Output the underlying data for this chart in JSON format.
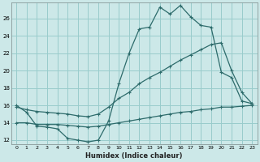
{
  "xlabel": "Humidex (Indice chaleur)",
  "bg_color": "#cce8e8",
  "grid_color": "#99cccc",
  "line_color": "#2d6b6b",
  "xlim": [
    -0.5,
    23.5
  ],
  "ylim": [
    11.5,
    27.8
  ],
  "xticks": [
    0,
    1,
    2,
    3,
    4,
    5,
    6,
    7,
    8,
    9,
    10,
    11,
    12,
    13,
    14,
    15,
    16,
    17,
    18,
    19,
    20,
    21,
    22,
    23
  ],
  "yticks": [
    12,
    14,
    16,
    18,
    20,
    22,
    24,
    26
  ],
  "line1_x": [
    0,
    1,
    2,
    3,
    4,
    5,
    6,
    7,
    8,
    9,
    10,
    11,
    12,
    13,
    14,
    15,
    16,
    17,
    18,
    19,
    20,
    21,
    22,
    23
  ],
  "line1_y": [
    16.0,
    15.2,
    13.6,
    13.5,
    13.3,
    12.2,
    12.0,
    11.8,
    12.0,
    14.2,
    18.5,
    22.0,
    24.8,
    25.0,
    27.3,
    26.5,
    27.5,
    26.2,
    25.2,
    25.0,
    19.8,
    19.2,
    16.5,
    16.2
  ],
  "line2_x": [
    0,
    1,
    2,
    3,
    4,
    5,
    6,
    7,
    8,
    9,
    10,
    11,
    12,
    13,
    14,
    15,
    16,
    17,
    18,
    19,
    20,
    21,
    22,
    23
  ],
  "line2_y": [
    15.8,
    15.5,
    15.3,
    15.2,
    15.1,
    15.0,
    14.8,
    14.7,
    15.0,
    15.8,
    16.8,
    17.5,
    18.5,
    19.2,
    19.8,
    20.5,
    21.2,
    21.8,
    22.4,
    23.0,
    23.2,
    20.0,
    17.5,
    16.2
  ],
  "line3_x": [
    0,
    1,
    2,
    3,
    4,
    5,
    6,
    7,
    8,
    9,
    10,
    11,
    12,
    13,
    14,
    15,
    16,
    17,
    18,
    19,
    20,
    21,
    22,
    23
  ],
  "line3_y": [
    14.0,
    14.0,
    13.8,
    13.8,
    13.8,
    13.7,
    13.6,
    13.5,
    13.6,
    13.8,
    14.0,
    14.2,
    14.4,
    14.6,
    14.8,
    15.0,
    15.2,
    15.3,
    15.5,
    15.6,
    15.8,
    15.8,
    15.9,
    16.0
  ]
}
